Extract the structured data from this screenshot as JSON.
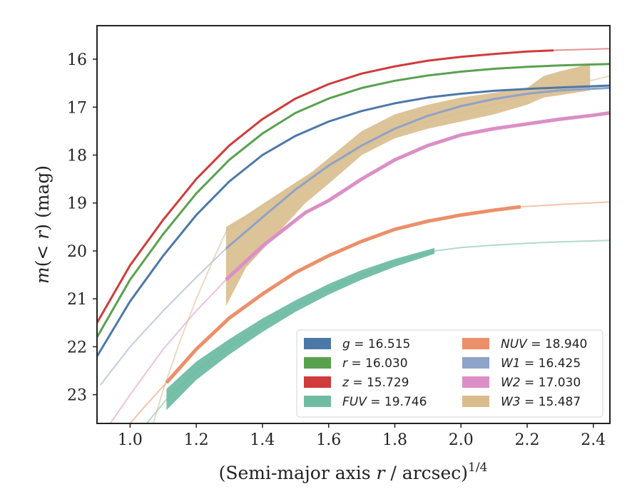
{
  "chart_data": {
    "type": "line",
    "xlabel_main": "(Semi-major axis ",
    "xlabel_var": "r",
    "xlabel_unit": " / arcsec)",
    "xlabel_exp": "1/4",
    "ylabel_var_m": "m",
    "ylabel_args": "(< ",
    "ylabel_var_r": "r",
    "ylabel_close": ") (mag)",
    "xlim": [
      0.9,
      2.45
    ],
    "ylim": [
      23.6,
      15.3
    ],
    "y_inverted": true,
    "xticks": [
      1.0,
      1.2,
      1.4,
      1.6,
      1.8,
      2.0,
      2.2,
      2.4
    ],
    "xtick_labels": [
      "1.0",
      "1.2",
      "1.4",
      "1.6",
      "1.8",
      "2.0",
      "2.2",
      "2.4"
    ],
    "yticks": [
      16,
      17,
      18,
      19,
      20,
      21,
      22,
      23
    ],
    "ytick_labels": [
      "16",
      "17",
      "18",
      "19",
      "20",
      "21",
      "22",
      "23"
    ],
    "grid": false,
    "legend_position": "lower-right",
    "legend_columns": 2,
    "series": [
      {
        "band": "g",
        "legend_label": " = 16.515",
        "color": "#4c78a8",
        "kind": "line",
        "solid_range": [
          0.9,
          2.45
        ],
        "width": 3,
        "points": [
          [
            0.9,
            22.2
          ],
          [
            1.0,
            21.05
          ],
          [
            1.1,
            20.1
          ],
          [
            1.2,
            19.25
          ],
          [
            1.3,
            18.55
          ],
          [
            1.4,
            18.0
          ],
          [
            1.5,
            17.6
          ],
          [
            1.6,
            17.3
          ],
          [
            1.7,
            17.08
          ],
          [
            1.8,
            16.92
          ],
          [
            1.9,
            16.8
          ],
          [
            2.0,
            16.72
          ],
          [
            2.1,
            16.66
          ],
          [
            2.2,
            16.62
          ],
          [
            2.3,
            16.59
          ],
          [
            2.45,
            16.55
          ]
        ]
      },
      {
        "band": "r",
        "legend_label": " = 16.030",
        "color": "#59a14f",
        "kind": "line",
        "solid_range": [
          0.9,
          2.45
        ],
        "width": 3,
        "points": [
          [
            0.9,
            21.8
          ],
          [
            1.0,
            20.6
          ],
          [
            1.1,
            19.65
          ],
          [
            1.2,
            18.8
          ],
          [
            1.3,
            18.1
          ],
          [
            1.4,
            17.55
          ],
          [
            1.5,
            17.12
          ],
          [
            1.6,
            16.82
          ],
          [
            1.7,
            16.6
          ],
          [
            1.8,
            16.45
          ],
          [
            1.9,
            16.34
          ],
          [
            2.0,
            16.26
          ],
          [
            2.1,
            16.2
          ],
          [
            2.2,
            16.16
          ],
          [
            2.3,
            16.13
          ],
          [
            2.45,
            16.1
          ]
        ]
      },
      {
        "band": "z",
        "legend_label": " = 15.729",
        "color": "#d03b3b",
        "kind": "line",
        "solid_range": [
          0.9,
          2.28
        ],
        "width": 3,
        "points": [
          [
            0.9,
            21.5
          ],
          [
            1.0,
            20.3
          ],
          [
            1.1,
            19.35
          ],
          [
            1.2,
            18.5
          ],
          [
            1.3,
            17.8
          ],
          [
            1.4,
            17.25
          ],
          [
            1.5,
            16.82
          ],
          [
            1.6,
            16.52
          ],
          [
            1.7,
            16.3
          ],
          [
            1.8,
            16.15
          ],
          [
            1.9,
            16.03
          ],
          [
            2.0,
            15.95
          ],
          [
            2.1,
            15.89
          ],
          [
            2.2,
            15.84
          ],
          [
            2.3,
            15.81
          ],
          [
            2.45,
            15.78
          ]
        ]
      },
      {
        "band": "FUV",
        "legend_label": " = 19.746",
        "color": "#6fbca3",
        "kind": "band",
        "solid_range": [
          1.11,
          1.92
        ],
        "width": 2,
        "points": [
          [
            1.05,
            23.6
          ],
          [
            1.11,
            23.1
          ],
          [
            1.2,
            22.5
          ],
          [
            1.3,
            22.0
          ],
          [
            1.4,
            21.55
          ],
          [
            1.5,
            21.15
          ],
          [
            1.6,
            20.8
          ],
          [
            1.7,
            20.5
          ],
          [
            1.8,
            20.25
          ],
          [
            1.92,
            20.0
          ],
          [
            2.0,
            19.93
          ],
          [
            2.1,
            19.88
          ],
          [
            2.2,
            19.84
          ],
          [
            2.3,
            19.81
          ],
          [
            2.45,
            19.78
          ]
        ],
        "band_halfwidth": [
          [
            1.11,
            0.22
          ],
          [
            1.3,
            0.16
          ],
          [
            1.5,
            0.12
          ],
          [
            1.7,
            0.1
          ],
          [
            1.92,
            0.06
          ]
        ]
      },
      {
        "band": "NUV",
        "legend_label": " = 18.940",
        "color": "#ec8f6a",
        "kind": "line",
        "solid_range": [
          1.11,
          2.18
        ],
        "width": 5,
        "points": [
          [
            1.0,
            23.6
          ],
          [
            1.05,
            23.2
          ],
          [
            1.11,
            22.75
          ],
          [
            1.2,
            22.05
          ],
          [
            1.3,
            21.4
          ],
          [
            1.4,
            20.9
          ],
          [
            1.5,
            20.45
          ],
          [
            1.6,
            20.1
          ],
          [
            1.7,
            19.8
          ],
          [
            1.8,
            19.55
          ],
          [
            1.9,
            19.38
          ],
          [
            2.0,
            19.25
          ],
          [
            2.1,
            19.15
          ],
          [
            2.18,
            19.08
          ],
          [
            2.3,
            19.03
          ],
          [
            2.45,
            18.98
          ]
        ]
      },
      {
        "band": "W1",
        "legend_label": " = 16.425",
        "color": "#8fa2c8",
        "kind": "line",
        "solid_range": [
          1.29,
          2.45
        ],
        "width": 3,
        "points": [
          [
            0.91,
            22.8
          ],
          [
            1.0,
            22.0
          ],
          [
            1.1,
            21.25
          ],
          [
            1.2,
            20.55
          ],
          [
            1.29,
            19.95
          ],
          [
            1.4,
            19.3
          ],
          [
            1.5,
            18.72
          ],
          [
            1.6,
            18.22
          ],
          [
            1.7,
            17.8
          ],
          [
            1.8,
            17.45
          ],
          [
            1.9,
            17.18
          ],
          [
            2.0,
            16.98
          ],
          [
            2.1,
            16.83
          ],
          [
            2.2,
            16.72
          ],
          [
            2.3,
            16.65
          ],
          [
            2.45,
            16.6
          ]
        ]
      },
      {
        "band": "W2",
        "legend_label": " = 17.030",
        "color": "#db8fc6",
        "kind": "line",
        "solid_range": [
          1.29,
          2.45
        ],
        "width": 5,
        "points": [
          [
            0.94,
            23.6
          ],
          [
            1.0,
            23.0
          ],
          [
            1.1,
            22.05
          ],
          [
            1.2,
            21.25
          ],
          [
            1.29,
            20.6
          ],
          [
            1.4,
            19.9
          ],
          [
            1.53,
            19.2
          ],
          [
            1.6,
            18.95
          ],
          [
            1.7,
            18.5
          ],
          [
            1.8,
            18.1
          ],
          [
            1.9,
            17.8
          ],
          [
            2.0,
            17.58
          ],
          [
            2.1,
            17.45
          ],
          [
            2.2,
            17.35
          ],
          [
            2.3,
            17.25
          ],
          [
            2.4,
            17.17
          ],
          [
            2.45,
            17.12
          ]
        ]
      },
      {
        "band": "W3",
        "legend_label": " = 15.487",
        "color": "#d9bc8d",
        "kind": "band",
        "solid_range": [
          1.29,
          2.39
        ],
        "width": 2,
        "points": [
          [
            1.07,
            23.6
          ],
          [
            1.1,
            22.9
          ],
          [
            1.15,
            21.9
          ],
          [
            1.2,
            21.0
          ],
          [
            1.25,
            20.2
          ],
          [
            1.29,
            19.6
          ],
          [
            1.4,
            19.05
          ],
          [
            1.5,
            18.6
          ],
          [
            1.6,
            18.25
          ],
          [
            1.7,
            17.85
          ],
          [
            1.8,
            17.55
          ],
          [
            1.9,
            17.3
          ],
          [
            2.0,
            17.12
          ],
          [
            2.1,
            16.95
          ],
          [
            2.2,
            16.75
          ],
          [
            2.3,
            16.55
          ],
          [
            2.39,
            16.45
          ],
          [
            2.45,
            16.35
          ]
        ],
        "band_upper": [
          [
            1.29,
            19.5
          ],
          [
            1.35,
            19.25
          ],
          [
            1.45,
            18.8
          ],
          [
            1.55,
            18.35
          ],
          [
            1.7,
            17.5
          ],
          [
            1.8,
            17.15
          ],
          [
            1.9,
            16.95
          ],
          [
            2.0,
            16.8
          ],
          [
            2.1,
            16.7
          ],
          [
            2.2,
            16.6
          ],
          [
            2.25,
            16.35
          ],
          [
            2.3,
            16.25
          ],
          [
            2.39,
            16.1
          ]
        ],
        "band_lower": [
          [
            1.29,
            21.15
          ],
          [
            1.35,
            20.35
          ],
          [
            1.45,
            19.6
          ],
          [
            1.53,
            19.0
          ],
          [
            1.6,
            18.6
          ],
          [
            1.7,
            18.0
          ],
          [
            1.8,
            17.65
          ],
          [
            1.9,
            17.45
          ],
          [
            2.0,
            17.3
          ],
          [
            2.1,
            17.15
          ],
          [
            2.2,
            16.95
          ],
          [
            2.25,
            16.8
          ],
          [
            2.3,
            16.75
          ],
          [
            2.39,
            16.65
          ]
        ]
      }
    ],
    "legend": [
      {
        "band": "g",
        "label": " = 16.515",
        "color": "#4c78a8"
      },
      {
        "band": "NUV",
        "label": " = 18.940",
        "color": "#ec8f6a"
      },
      {
        "band": "r",
        "label": " = 16.030",
        "color": "#59a14f"
      },
      {
        "band": "W1",
        "label": " = 16.425",
        "color": "#8fa2c8"
      },
      {
        "band": "z",
        "label": " = 15.729",
        "color": "#d03b3b"
      },
      {
        "band": "W2",
        "label": " = 17.030",
        "color": "#db8fc6"
      },
      {
        "band": "FUV",
        "label": " = 19.746",
        "color": "#6fbca3"
      },
      {
        "band": "W3",
        "label": " = 15.487",
        "color": "#d9bc8d"
      }
    ]
  }
}
